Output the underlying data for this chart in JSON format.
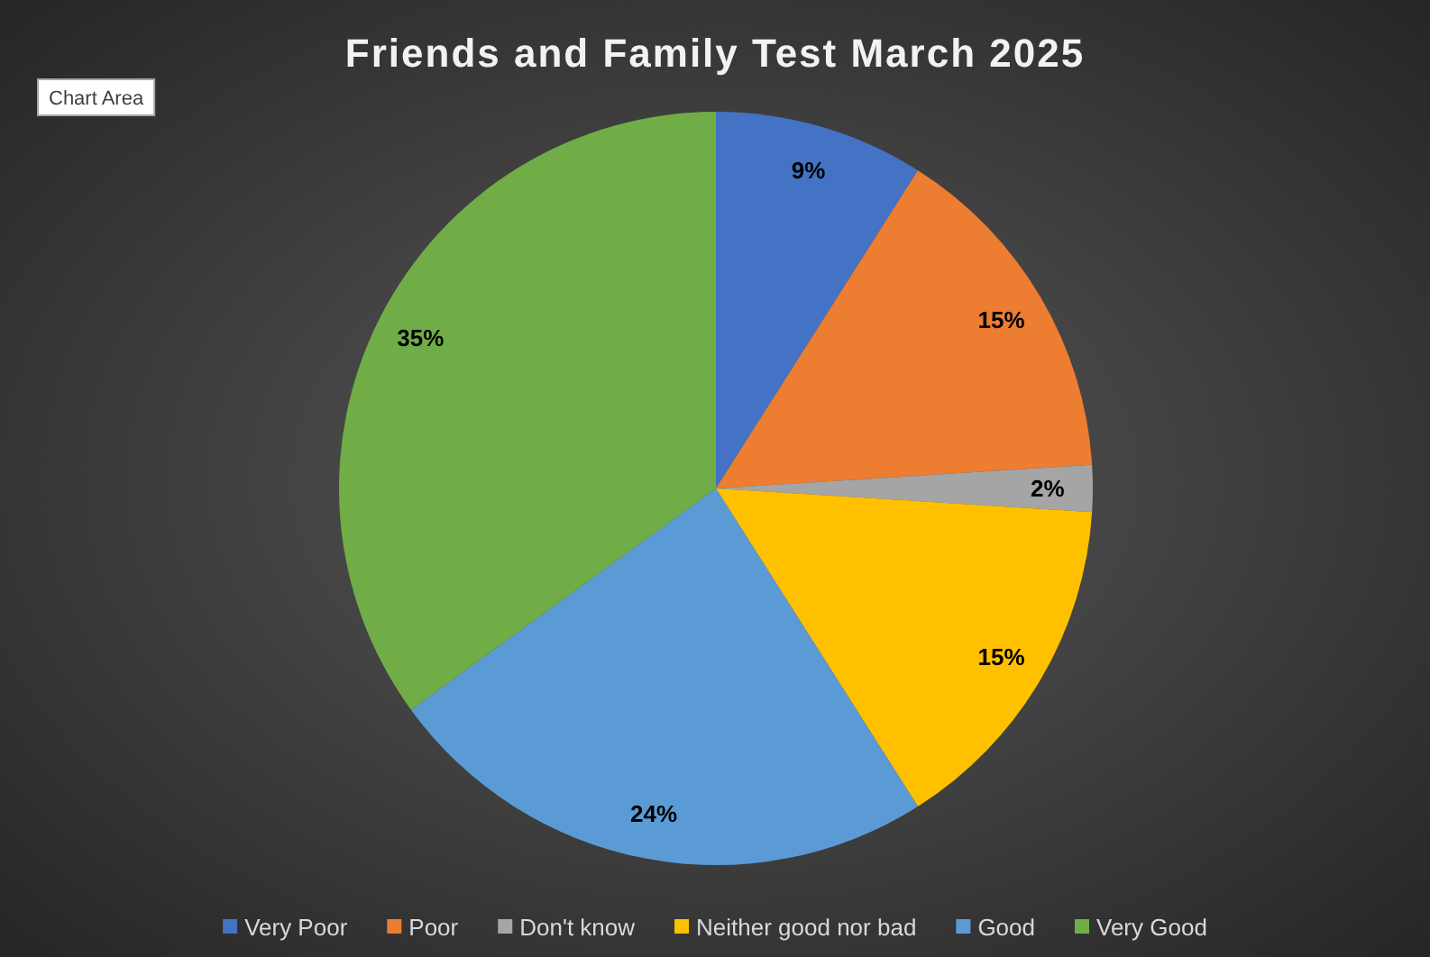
{
  "chart_data": {
    "type": "pie",
    "title": "Friends and Family Test March 2025",
    "categories": [
      "Very Poor",
      "Poor",
      "Don't know",
      "Neither good nor bad",
      "Good",
      "Very Good"
    ],
    "values": [
      9,
      15,
      2,
      15,
      24,
      35
    ],
    "colors": [
      "#4472c4",
      "#ed7d31",
      "#a5a5a5",
      "#ffc000",
      "#5b9bd5",
      "#70ad47"
    ],
    "value_labels": [
      "9%",
      "15%",
      "2%",
      "15%",
      "24%",
      "35%"
    ],
    "legend": "bottom",
    "annotations": [
      "Chart Area"
    ]
  }
}
